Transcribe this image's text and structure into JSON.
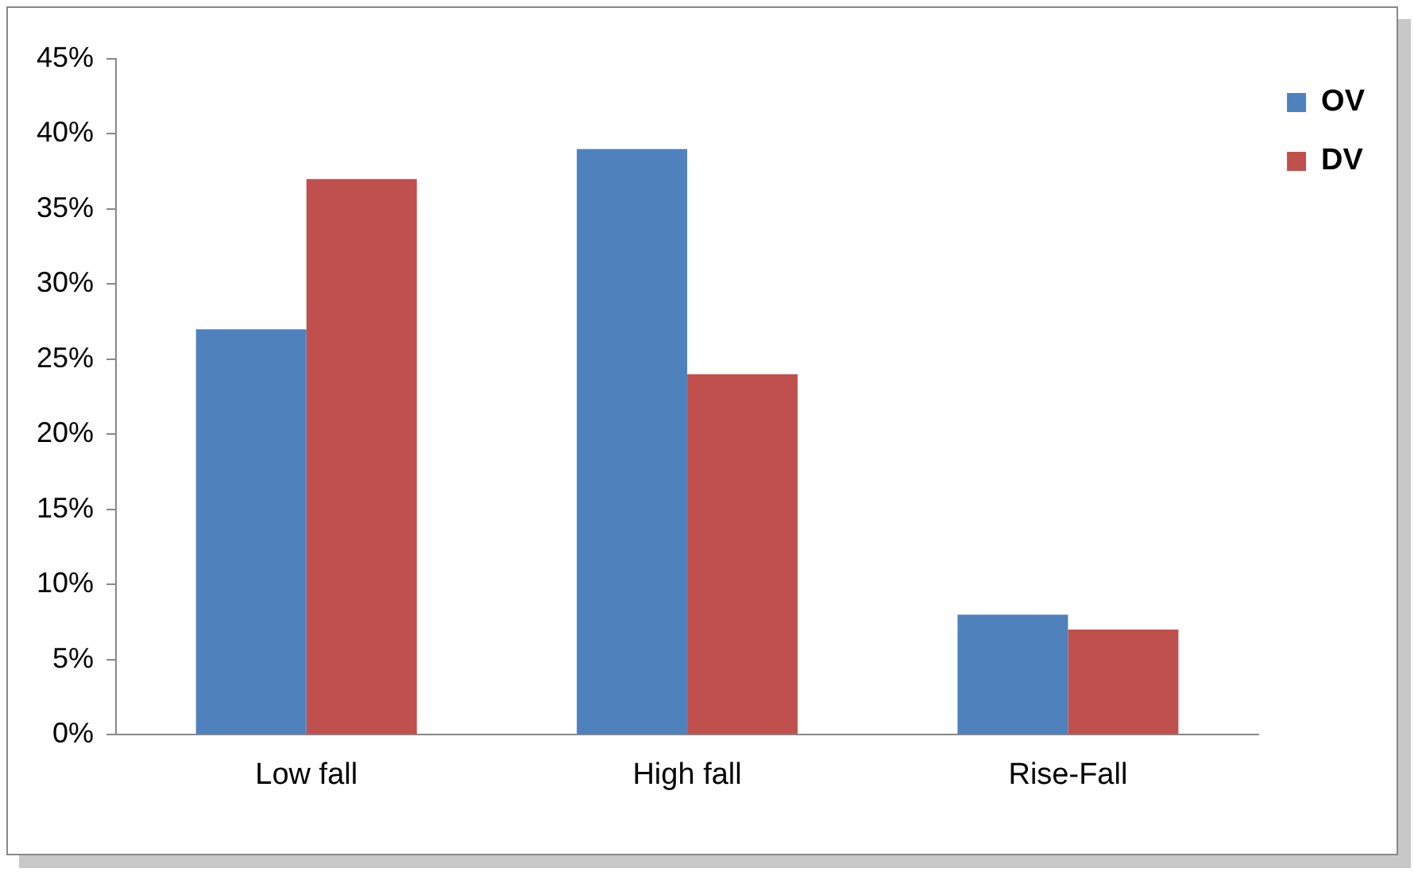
{
  "chart_data": {
    "type": "bar",
    "categories": [
      "Low fall",
      "High fall",
      "Rise-Fall"
    ],
    "series": [
      {
        "name": "OV",
        "color": "#4f81bd",
        "values": [
          27,
          39,
          8
        ]
      },
      {
        "name": "DV",
        "color": "#c0504d",
        "values": [
          37,
          24,
          7
        ]
      }
    ],
    "ylim": [
      0,
      45
    ],
    "yticks": [
      {
        "value": 0,
        "label": "0%"
      },
      {
        "value": 5,
        "label": "5%"
      },
      {
        "value": 10,
        "label": "10%"
      },
      {
        "value": 15,
        "label": "15%"
      },
      {
        "value": 20,
        "label": "20%"
      },
      {
        "value": 25,
        "label": "25%"
      },
      {
        "value": 30,
        "label": "30%"
      },
      {
        "value": 35,
        "label": "35%"
      },
      {
        "value": 40,
        "label": "40%"
      },
      {
        "value": 45,
        "label": "45%"
      }
    ],
    "grid": false,
    "legend": "top right"
  }
}
